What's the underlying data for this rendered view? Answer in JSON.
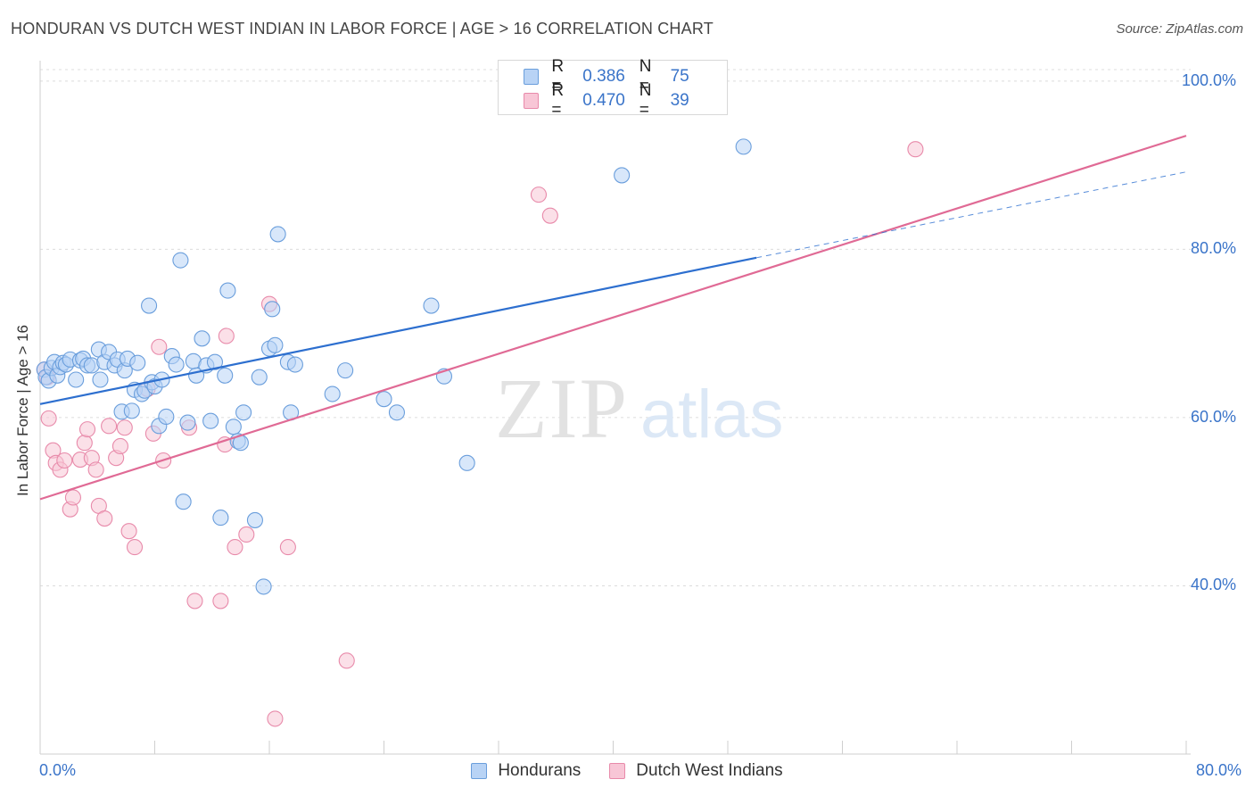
{
  "title": "HONDURAN VS DUTCH WEST INDIAN IN LABOR FORCE | AGE > 16 CORRELATION CHART",
  "source": "Source: ZipAtlas.com",
  "watermark": {
    "zip": "ZIP",
    "atlas": "atlas"
  },
  "legend_top": {
    "rows": [
      {
        "r_label": "R =",
        "r_value": "0.386",
        "n_label": "N =",
        "n_value": "75"
      },
      {
        "r_label": "R =",
        "r_value": "0.470",
        "n_label": "N =",
        "n_value": "39"
      }
    ]
  },
  "colors": {
    "blue_fill": "#b8d3f5",
    "blue_stroke": "#6a9edc",
    "blue_line": "#2d6fcf",
    "pink_fill": "#f8c6d6",
    "pink_stroke": "#e88aaa",
    "pink_line": "#e06a95",
    "tick_text": "#3a74c9",
    "grid": "#dcdcdc"
  },
  "chart_data": {
    "type": "scatter",
    "title": "HONDURAN VS DUTCH WEST INDIAN IN LABOR FORCE | AGE > 16 CORRELATION CHART",
    "xlabel": "",
    "ylabel": "In Labor Force | Age > 16",
    "xlim": [
      0,
      80
    ],
    "ylim": [
      20,
      102
    ],
    "x_tick_labels": [
      "0.0%",
      "80.0%"
    ],
    "y_ticks": [
      40,
      60,
      80,
      100
    ],
    "y_tick_labels": [
      "40.0%",
      "60.0%",
      "80.0%",
      "100.0%"
    ],
    "grid": true,
    "legend_placement": "bottom",
    "series": [
      {
        "name": "Hondurans",
        "color": "#6a9edc",
        "trend": {
          "x0": 0,
          "y0": 61.6,
          "x1": 50,
          "y1": 79.0,
          "dash_x1": 80,
          "dash_y1": 89.2
        },
        "points": [
          [
            0.3,
            65.7
          ],
          [
            0.4,
            64.8
          ],
          [
            0.6,
            64.4
          ],
          [
            0.8,
            65.9
          ],
          [
            1.0,
            66.6
          ],
          [
            1.2,
            65.0
          ],
          [
            1.4,
            66.0
          ],
          [
            1.6,
            66.5
          ],
          [
            1.8,
            66.3
          ],
          [
            2.1,
            66.9
          ],
          [
            2.5,
            64.5
          ],
          [
            2.8,
            66.8
          ],
          [
            3.0,
            67.0
          ],
          [
            3.3,
            66.2
          ],
          [
            3.6,
            66.2
          ],
          [
            4.1,
            68.1
          ],
          [
            4.2,
            64.5
          ],
          [
            4.5,
            66.6
          ],
          [
            4.8,
            67.8
          ],
          [
            5.2,
            66.2
          ],
          [
            5.4,
            66.9
          ],
          [
            5.7,
            60.7
          ],
          [
            5.9,
            65.6
          ],
          [
            6.1,
            67.0
          ],
          [
            6.4,
            60.8
          ],
          [
            6.6,
            63.3
          ],
          [
            6.8,
            66.5
          ],
          [
            7.1,
            62.8
          ],
          [
            7.3,
            63.2
          ],
          [
            7.6,
            73.3
          ],
          [
            7.8,
            64.2
          ],
          [
            8.0,
            63.7
          ],
          [
            8.3,
            59.0
          ],
          [
            8.5,
            64.5
          ],
          [
            8.8,
            60.1
          ],
          [
            9.2,
            67.3
          ],
          [
            9.5,
            66.3
          ],
          [
            9.8,
            78.7
          ],
          [
            10.0,
            50.0
          ],
          [
            10.3,
            59.4
          ],
          [
            10.7,
            66.7
          ],
          [
            10.9,
            65.0
          ],
          [
            11.3,
            69.4
          ],
          [
            11.6,
            66.2
          ],
          [
            11.9,
            59.6
          ],
          [
            12.2,
            66.6
          ],
          [
            12.6,
            48.1
          ],
          [
            12.9,
            65.0
          ],
          [
            13.1,
            75.1
          ],
          [
            13.5,
            58.9
          ],
          [
            13.8,
            57.2
          ],
          [
            14.0,
            57.0
          ],
          [
            14.2,
            60.6
          ],
          [
            15.0,
            47.8
          ],
          [
            15.3,
            64.8
          ],
          [
            15.6,
            39.9
          ],
          [
            16.0,
            68.2
          ],
          [
            16.2,
            72.9
          ],
          [
            16.4,
            68.6
          ],
          [
            16.6,
            81.8
          ],
          [
            17.3,
            66.6
          ],
          [
            17.5,
            60.6
          ],
          [
            17.8,
            66.3
          ],
          [
            20.4,
            62.8
          ],
          [
            21.3,
            65.6
          ],
          [
            24.0,
            62.2
          ],
          [
            24.9,
            60.6
          ],
          [
            27.3,
            73.3
          ],
          [
            28.2,
            64.9
          ],
          [
            29.8,
            54.6
          ],
          [
            40.6,
            88.8
          ],
          [
            41.8,
            100.0
          ],
          [
            49.1,
            92.2
          ]
        ]
      },
      {
        "name": "Dutch West Indians",
        "color": "#e88aaa",
        "trend": {
          "x0": 0,
          "y0": 50.3,
          "x1": 80,
          "y1": 93.5
        },
        "points": [
          [
            0.3,
            65.7
          ],
          [
            0.5,
            64.8
          ],
          [
            0.6,
            59.9
          ],
          [
            0.9,
            56.1
          ],
          [
            1.1,
            54.6
          ],
          [
            1.4,
            53.8
          ],
          [
            1.7,
            54.9
          ],
          [
            2.1,
            49.1
          ],
          [
            2.3,
            50.5
          ],
          [
            2.8,
            55.0
          ],
          [
            3.1,
            57.0
          ],
          [
            3.3,
            58.6
          ],
          [
            3.6,
            55.2
          ],
          [
            3.9,
            53.8
          ],
          [
            4.1,
            49.5
          ],
          [
            4.5,
            48.0
          ],
          [
            4.8,
            59.0
          ],
          [
            5.3,
            55.2
          ],
          [
            5.6,
            56.6
          ],
          [
            5.9,
            58.8
          ],
          [
            6.2,
            46.5
          ],
          [
            6.6,
            44.6
          ],
          [
            7.5,
            63.4
          ],
          [
            7.9,
            58.1
          ],
          [
            8.3,
            68.4
          ],
          [
            8.6,
            54.9
          ],
          [
            10.4,
            58.8
          ],
          [
            10.8,
            38.2
          ],
          [
            12.6,
            38.2
          ],
          [
            12.9,
            56.8
          ],
          [
            13.0,
            69.7
          ],
          [
            13.6,
            44.6
          ],
          [
            14.4,
            46.1
          ],
          [
            16.0,
            73.5
          ],
          [
            16.4,
            24.2
          ],
          [
            17.3,
            44.6
          ],
          [
            21.4,
            31.1
          ],
          [
            34.8,
            86.5
          ],
          [
            35.6,
            84.0
          ],
          [
            61.1,
            91.9
          ]
        ]
      }
    ]
  }
}
